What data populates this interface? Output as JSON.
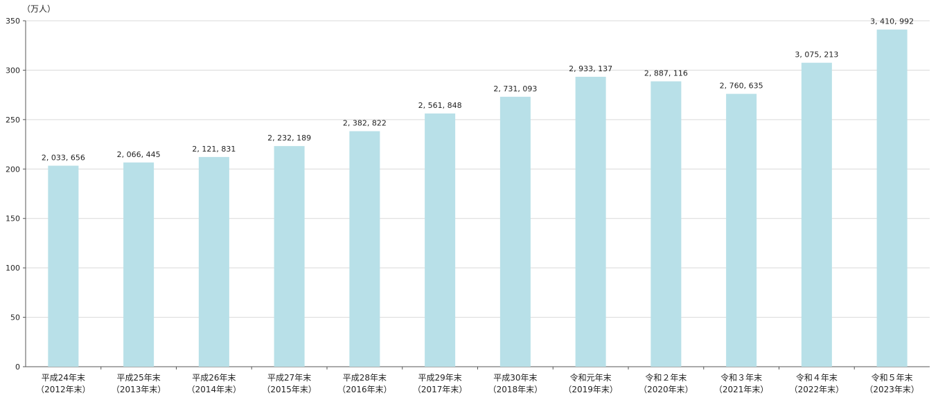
{
  "chart_data": {
    "type": "bar",
    "unit_label": "（万人）",
    "title": "",
    "xlabel": "",
    "ylabel": "",
    "ylim": [
      0,
      350
    ],
    "yticks": [
      0,
      50,
      100,
      150,
      200,
      250,
      300,
      350
    ],
    "grid": true,
    "categories": [
      {
        "line1": "平成24年末",
        "line2": "（2012年末）"
      },
      {
        "line1": "平成25年末",
        "line2": "（2013年末）"
      },
      {
        "line1": "平成26年末",
        "line2": "（2014年末）"
      },
      {
        "line1": "平成27年末",
        "line2": "（2015年末）"
      },
      {
        "line1": "平成28年末",
        "line2": "（2016年末）"
      },
      {
        "line1": "平成29年末",
        "line2": "（2017年末）"
      },
      {
        "line1": "平成30年末",
        "line2": "（2018年末）"
      },
      {
        "line1": "令和元年末",
        "line2": "（2019年末）"
      },
      {
        "line1": "令和２年末",
        "line2": "（2020年末）"
      },
      {
        "line1": "令和３年末",
        "line2": "（2021年末）"
      },
      {
        "line1": "令和４年末",
        "line2": "（2022年末）"
      },
      {
        "line1": "令和５年末",
        "line2": "（2023年末）"
      }
    ],
    "values": [
      203.3656,
      206.6445,
      212.1831,
      223.2189,
      238.2822,
      256.1848,
      273.1093,
      293.3137,
      288.7116,
      276.0635,
      307.5213,
      341.0992
    ],
    "data_labels": [
      "2, 033, 656",
      "2, 066, 445",
      "2, 121, 831",
      "2, 232, 189",
      "2, 382, 822",
      "2, 561, 848",
      "2, 731, 093",
      "2, 933, 137",
      "2, 887, 116",
      "2, 760, 635",
      "3, 075, 213",
      "3, 410, 992"
    ],
    "colors": {
      "bar": "#b8e0e8",
      "grid": "#d9d9d9",
      "axis": "#555555",
      "text": "#222222"
    }
  }
}
